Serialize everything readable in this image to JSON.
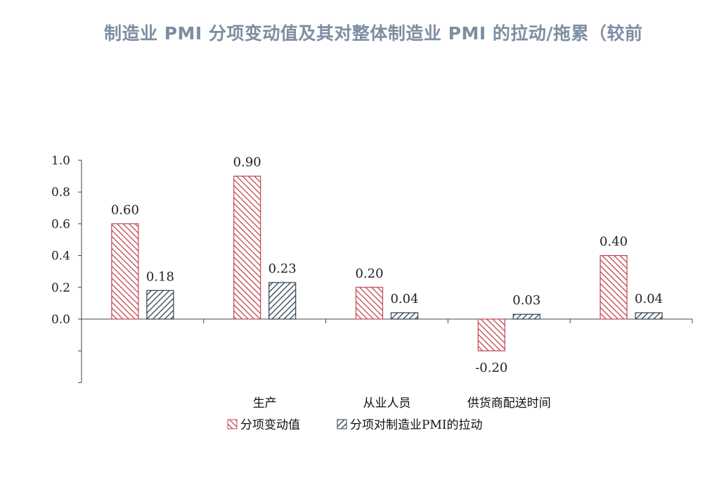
{
  "title": "制造业 PMI 分项变动值及其对整体制造业 PMI 的拉动/拖累（较前",
  "chart_data": {
    "type": "bar",
    "categories": [
      "",
      "生产",
      "从业人员",
      "供货商配送时间",
      ""
    ],
    "series": [
      {
        "name": "分项变动值",
        "values": [
          0.6,
          0.9,
          0.2,
          -0.2,
          0.4
        ],
        "color": "#c0464f",
        "pattern": "backslash-hatch"
      },
      {
        "name": "分项对制造业PMI的拉动",
        "values": [
          0.18,
          0.23,
          0.04,
          0.03,
          0.04
        ],
        "color": "#2e3f50",
        "pattern": "slash-hatch"
      }
    ],
    "data_labels": [
      [
        "0.60",
        "0.90",
        "0.20",
        "-0.20",
        "0.40"
      ],
      [
        "0.18",
        "0.23",
        "0.04",
        "0.03",
        "0.04"
      ]
    ],
    "y_ticks": [
      "1.0",
      "0.8",
      "0.6",
      "0.4",
      "0.2",
      "0.0"
    ],
    "y_tick_values": [
      1.0,
      0.8,
      0.6,
      0.4,
      0.2,
      0.0
    ],
    "ylim": [
      -0.4,
      1.0
    ],
    "legend_position": "bottom",
    "grid": false
  }
}
